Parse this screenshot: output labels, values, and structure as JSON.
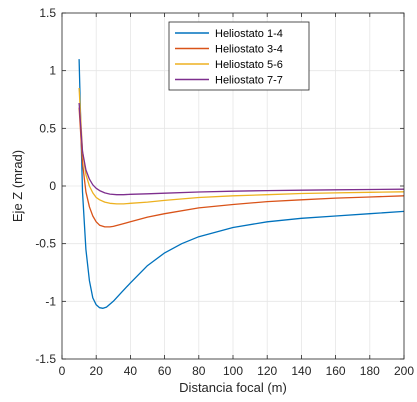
{
  "chart_data": {
    "type": "line",
    "xlabel": "Distancia focal (m)",
    "ylabel": "Eje Z (mrad)",
    "xlim": [
      0,
      200
    ],
    "ylim": [
      -1.5,
      1.5
    ],
    "xticks": [
      0,
      20,
      40,
      60,
      80,
      100,
      120,
      140,
      160,
      180,
      200
    ],
    "yticks": [
      -1.5,
      -1,
      -0.5,
      0,
      0.5,
      1,
      1.5
    ],
    "grid": true,
    "legend_position": "top-center",
    "series": [
      {
        "name": "Heliostato 1-4",
        "color": "#0072BD",
        "x": [
          10,
          12,
          14,
          16,
          18,
          20,
          22,
          24,
          26,
          30,
          35,
          40,
          50,
          60,
          70,
          80,
          100,
          120,
          140,
          160,
          180,
          200
        ],
        "y": [
          1.1,
          -0.05,
          -0.55,
          -0.82,
          -0.97,
          -1.03,
          -1.055,
          -1.06,
          -1.05,
          -1.0,
          -0.92,
          -0.84,
          -0.69,
          -0.58,
          -0.5,
          -0.44,
          -0.36,
          -0.31,
          -0.28,
          -0.26,
          -0.24,
          -0.22
        ]
      },
      {
        "name": "Heliostato 3-4",
        "color": "#D95319",
        "x": [
          10,
          12,
          14,
          16,
          18,
          20,
          22,
          25,
          28,
          30,
          35,
          40,
          50,
          60,
          80,
          100,
          120,
          140,
          160,
          180,
          200
        ],
        "y": [
          0.68,
          0.2,
          -0.05,
          -0.18,
          -0.26,
          -0.31,
          -0.34,
          -0.355,
          -0.355,
          -0.35,
          -0.33,
          -0.31,
          -0.27,
          -0.24,
          -0.19,
          -0.16,
          -0.135,
          -0.12,
          -0.105,
          -0.095,
          -0.085
        ]
      },
      {
        "name": "Heliostato 5-6",
        "color": "#EDB120",
        "x": [
          10,
          12,
          14,
          16,
          18,
          20,
          22,
          25,
          28,
          32,
          36,
          40,
          50,
          60,
          80,
          100,
          120,
          140,
          160,
          180,
          200
        ],
        "y": [
          0.85,
          0.3,
          0.1,
          0.0,
          -0.06,
          -0.1,
          -0.12,
          -0.14,
          -0.15,
          -0.155,
          -0.155,
          -0.15,
          -0.14,
          -0.125,
          -0.1,
          -0.085,
          -0.075,
          -0.065,
          -0.06,
          -0.055,
          -0.05
        ]
      },
      {
        "name": "Heliostato 7-7",
        "color": "#7E2F8E",
        "x": [
          10,
          12,
          14,
          16,
          18,
          20,
          22,
          25,
          28,
          32,
          36,
          40,
          50,
          60,
          80,
          100,
          120,
          140,
          160,
          180,
          200
        ],
        "y": [
          0.72,
          0.3,
          0.14,
          0.06,
          0.01,
          -0.02,
          -0.04,
          -0.06,
          -0.07,
          -0.075,
          -0.075,
          -0.072,
          -0.068,
          -0.062,
          -0.052,
          -0.045,
          -0.04,
          -0.036,
          -0.033,
          -0.03,
          -0.028
        ]
      }
    ]
  }
}
